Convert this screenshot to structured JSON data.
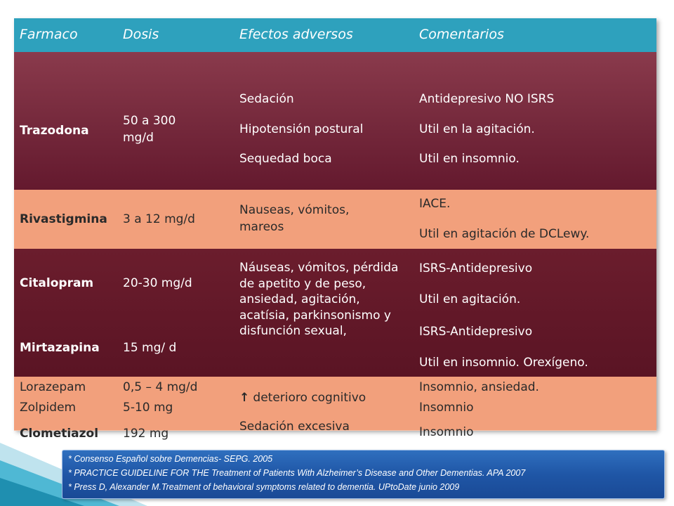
{
  "header": {
    "col1": "Farmaco",
    "col2": "Dosis",
    "col3": "Efectos adversos",
    "col4": "Comentarios"
  },
  "rows": {
    "trazodona": {
      "drug": "Trazodona",
      "dose": "50 a 300 mg/d",
      "effects": [
        "Sedación",
        "Hipotensión postural",
        "Sequedad boca"
      ],
      "comments": [
        "Antidepresivo NO ISRS",
        "Util en la agitación.",
        "Util en insomnio."
      ]
    },
    "rivastigmina": {
      "drug": "Rivastigmina",
      "dose": "3 a 12 mg/d",
      "effects": "Nauseas, vómitos, mareos",
      "comments": [
        "IACE.",
        "Util en agitación de DCLewy."
      ]
    },
    "citalopram": {
      "drug": "Citalopram",
      "dose": "20-30 mg/d",
      "comments": [
        "ISRS-Antidepresivo",
        "Util en agitación."
      ]
    },
    "mirtazapina": {
      "drug": "Mirtazapina",
      "dose": "15 mg/ d",
      "comments": [
        "ISRS-Antidepresivo",
        "Util en insomnio. Orexígeno."
      ]
    },
    "shared_effects": "Náuseas, vómitos, pérdida de apetito y de peso, ansiedad, agitación, acatísia, parkinsonismo y disfunción sexual,",
    "lorazepam": {
      "drugs": [
        "Lorazepam",
        "Zolpidem",
        "Clometiazol"
      ],
      "doses": [
        "0,5 – 4 mg/d",
        "5-10 mg",
        "192 mg"
      ],
      "effects": [
        "deterioro cognitivo",
        "Sedación excesiva"
      ],
      "comments": [
        "Insomnio, ansiedad.",
        "Insomnio",
        "Insomnio"
      ]
    }
  },
  "icons": {
    "up_arrow": "↑"
  },
  "footer": {
    "refs": [
      "* Consenso Español sobre Demencias- SEPG. 2005",
      " * PRACTICE GUIDELINE FOR THE Treatment of Patients With Alzheimer’s Disease and Other Dementias. APA 2007",
      " * Press D, Alexander M.Treatment of behavioral symptoms related to dementia. UPtoDate  junio 2009"
    ]
  },
  "colors": {
    "header": "#2ea1bd",
    "dark_row": "#6b1d2d",
    "light_row": "#f2a07c",
    "footer": "#1f56a6"
  }
}
